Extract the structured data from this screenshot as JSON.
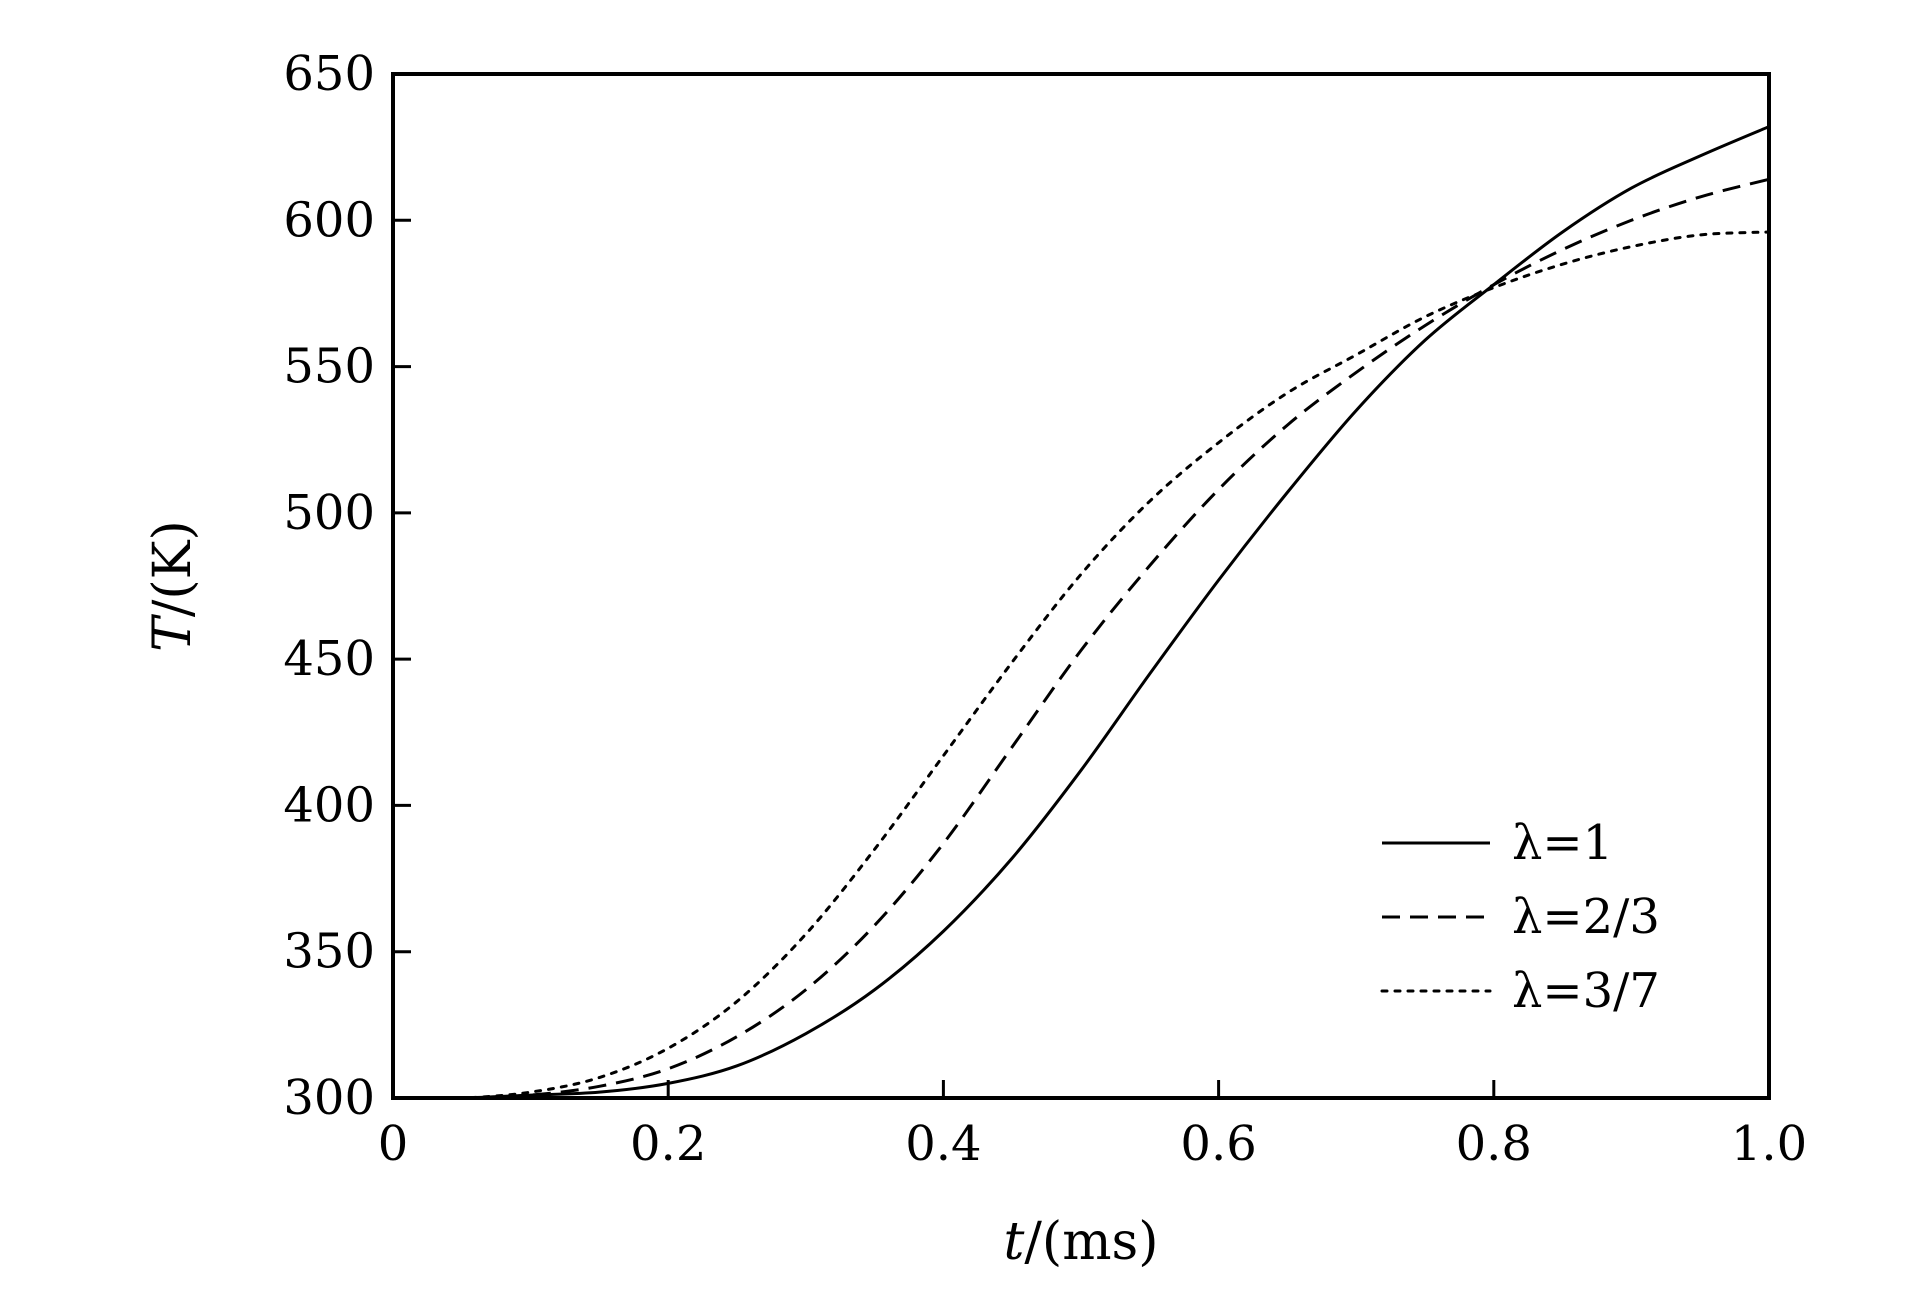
{
  "chart_data": {
    "type": "line",
    "title": "",
    "xlabel": {
      "symbol": "t",
      "unit": "/(ms)"
    },
    "ylabel": {
      "symbol": "T",
      "unit": "/(K)"
    },
    "xlim": [
      0,
      1.0
    ],
    "ylim": [
      300,
      650
    ],
    "xticks": [
      0,
      0.2,
      0.4,
      0.6,
      0.8,
      1.0
    ],
    "xtick_labels": [
      "0",
      "0.2",
      "0.4",
      "0.6",
      "0.8",
      "1.0"
    ],
    "yticks": [
      300,
      350,
      400,
      450,
      500,
      550,
      600,
      650
    ],
    "ytick_labels": [
      "300",
      "350",
      "400",
      "450",
      "500",
      "550",
      "600",
      "650"
    ],
    "grid": false,
    "legend_position": "bottom-right",
    "series": [
      {
        "name": "λ=1",
        "style": "solid",
        "color": "#000000",
        "x": [
          0,
          0.05,
          0.1,
          0.15,
          0.2,
          0.25,
          0.3,
          0.35,
          0.4,
          0.45,
          0.5,
          0.55,
          0.6,
          0.65,
          0.7,
          0.75,
          0.8,
          0.85,
          0.9,
          0.95,
          1.0
        ],
        "y": [
          300,
          300,
          301,
          302,
          305,
          311,
          322,
          337,
          357,
          382,
          412,
          445,
          477,
          507,
          535,
          559,
          578,
          596,
          611,
          622,
          632
        ]
      },
      {
        "name": "λ=2/3",
        "style": "dashed",
        "color": "#000000",
        "x": [
          0,
          0.05,
          0.1,
          0.15,
          0.2,
          0.25,
          0.3,
          0.35,
          0.4,
          0.45,
          0.5,
          0.55,
          0.6,
          0.65,
          0.7,
          0.75,
          0.8,
          0.85,
          0.9,
          0.95,
          1.0
        ],
        "y": [
          300,
          300,
          301,
          304,
          310,
          321,
          337,
          359,
          387,
          420,
          453,
          482,
          508,
          530,
          548,
          564,
          578,
          590,
          600,
          608,
          614
        ]
      },
      {
        "name": "λ=3/7",
        "style": "dotted",
        "color": "#000000",
        "x": [
          0,
          0.05,
          0.1,
          0.15,
          0.2,
          0.25,
          0.3,
          0.35,
          0.4,
          0.45,
          0.5,
          0.55,
          0.6,
          0.65,
          0.7,
          0.75,
          0.8,
          0.85,
          0.9,
          0.95,
          1.0
        ],
        "y": [
          300,
          300,
          302,
          307,
          317,
          333,
          356,
          385,
          417,
          449,
          479,
          504,
          524,
          541,
          554,
          567,
          577,
          585,
          591,
          595,
          596
        ]
      }
    ]
  }
}
